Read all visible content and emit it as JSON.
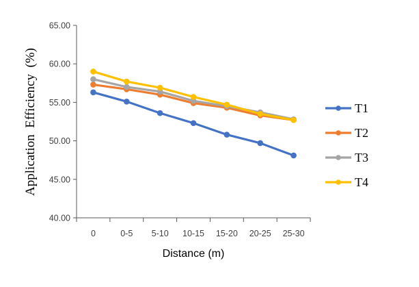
{
  "chart_data": {
    "type": "line",
    "title": "",
    "xlabel": "Distance (m)",
    "ylabel": "Application  Efficiency  (%)",
    "categories": [
      "0",
      "0-5",
      "5-10",
      "10-15",
      "15-20",
      "20-25",
      "25-30"
    ],
    "ylim": [
      40,
      65
    ],
    "yticks": [
      "40.00",
      "45.00",
      "50.00",
      "55.00",
      "60.00",
      "65.00"
    ],
    "grid": false,
    "legend_position": "right",
    "series": [
      {
        "name": "T1",
        "color": "#4472C4",
        "values": [
          56.3,
          55.1,
          53.6,
          52.3,
          50.8,
          49.7,
          48.1
        ]
      },
      {
        "name": "T2",
        "color": "#ED7D31",
        "values": [
          57.3,
          56.7,
          56.0,
          54.9,
          54.3,
          53.3,
          52.7
        ]
      },
      {
        "name": "T3",
        "color": "#A5A5A5",
        "values": [
          58.0,
          57.0,
          56.4,
          55.2,
          54.5,
          53.7,
          52.8
        ]
      },
      {
        "name": "T4",
        "color": "#FFC000",
        "values": [
          59.0,
          57.7,
          56.9,
          55.7,
          54.7,
          53.5,
          52.7
        ]
      }
    ]
  }
}
